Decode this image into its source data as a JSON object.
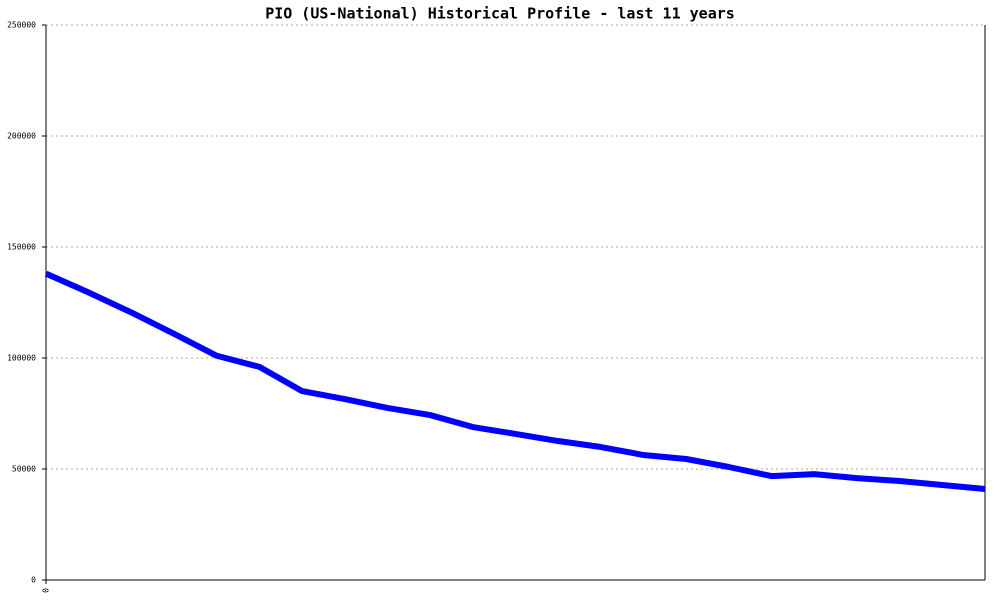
{
  "chart_data": {
    "type": "line",
    "title": "PIO (US-National) Historical Profile - last 11 years",
    "x": [
      0,
      1,
      2,
      3,
      4,
      5,
      6,
      7,
      8,
      9,
      10,
      11,
      12,
      13,
      14,
      15,
      16,
      17,
      18,
      19,
      20,
      21,
      22
    ],
    "series": [
      {
        "name": "PIO",
        "color": "#0000ff",
        "values": [
          138000,
          129500,
          120500,
          110900,
          101000,
          96000,
          85100,
          81500,
          77500,
          74300,
          68900,
          65800,
          62600,
          59900,
          56300,
          54500,
          50900,
          46800,
          47700,
          45900,
          44600,
          42800,
          41000
        ]
      }
    ],
    "xlim": [
      0,
      22
    ],
    "xticks": [
      0
    ],
    "ylim": [
      0,
      250000
    ],
    "yticks": [
      0,
      50000,
      100000,
      150000,
      200000,
      250000
    ],
    "grid": true
  }
}
